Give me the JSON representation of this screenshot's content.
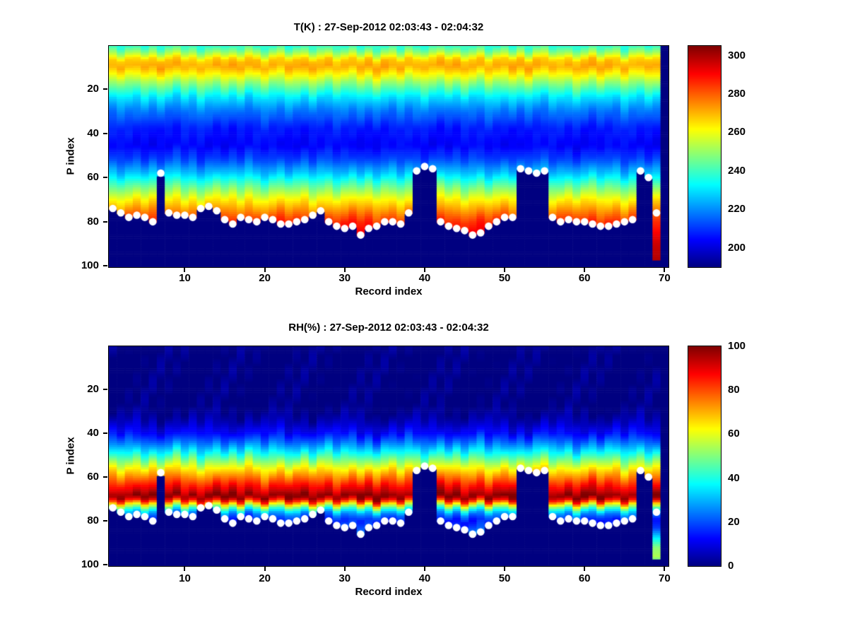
{
  "figure": {
    "background_color": "#ffffff",
    "text_color": "#000000"
  },
  "chart_data": [
    {
      "type": "heatmap",
      "title": "T(K) : 27-Sep-2012 02:03:43 - 02:04:32",
      "xlabel": "Record index",
      "ylabel": "P index",
      "records": 70,
      "p_levels": 100,
      "x_range": [
        1,
        70
      ],
      "y_range": [
        1,
        100
      ],
      "y_axis_direction": "reversed",
      "x_ticks": [
        10,
        20,
        30,
        40,
        50,
        60,
        70
      ],
      "y_ticks": [
        20,
        40,
        60,
        80,
        100
      ],
      "colormap": "jet",
      "grid": false,
      "colorbar": {
        "min": 190,
        "max": 305,
        "ticks": [
          200,
          220,
          240,
          260,
          280,
          300
        ],
        "position": "right"
      },
      "masked_color": "#00008f",
      "dot_color": "#ffffff",
      "texture_amplitude": 2.5,
      "profile_breakpoints": [
        [
          1,
          238
        ],
        [
          4,
          252
        ],
        [
          7,
          268
        ],
        [
          10,
          272
        ],
        [
          13,
          264
        ],
        [
          18,
          248
        ],
        [
          24,
          230
        ],
        [
          30,
          218
        ],
        [
          38,
          207
        ],
        [
          46,
          204
        ],
        [
          52,
          212
        ],
        [
          58,
          226
        ],
        [
          64,
          244
        ],
        [
          70,
          262
        ],
        [
          75,
          274
        ],
        [
          80,
          286
        ],
        [
          86,
          292
        ],
        [
          93,
          298
        ],
        [
          100,
          303
        ]
      ],
      "surface_index": [
        74,
        76,
        78,
        77,
        78,
        80,
        59,
        76,
        77,
        77,
        78,
        74,
        73,
        75,
        79,
        81,
        78,
        79,
        80,
        78,
        79,
        81,
        81,
        80,
        79,
        77,
        75,
        80,
        82,
        83,
        82,
        86,
        83,
        82,
        80,
        80,
        81,
        76,
        57,
        55,
        56,
        80,
        82,
        83,
        84,
        86,
        85,
        82,
        80,
        78,
        78,
        56,
        57,
        58,
        57,
        78,
        80,
        79,
        80,
        80,
        81,
        82,
        82,
        81,
        80,
        79,
        57,
        60,
        97,
        null
      ],
      "surface_dots": [
        74,
        76,
        78,
        77,
        78,
        80,
        58,
        76,
        77,
        77,
        78,
        74,
        73,
        75,
        79,
        81,
        78,
        79,
        80,
        78,
        79,
        81,
        81,
        80,
        79,
        77,
        75,
        80,
        82,
        83,
        82,
        86,
        83,
        82,
        80,
        80,
        81,
        76,
        57,
        55,
        56,
        80,
        82,
        83,
        84,
        86,
        85,
        82,
        80,
        78,
        78,
        56,
        57,
        58,
        57,
        78,
        80,
        79,
        80,
        80,
        81,
        82,
        82,
        81,
        80,
        79,
        57,
        60,
        76,
        null
      ],
      "column_shift": [
        0.3,
        -0.8,
        0.5,
        1.2,
        -0.4,
        0.9,
        -1.1,
        0.2,
        1.5,
        -0.6,
        0.8,
        -1.3,
        0.4,
        1.1,
        -0.2,
        0.7,
        -0.9,
        1.4,
        0.1,
        -1.0,
        0.6,
        1.3,
        -0.5,
        0.2,
        0.9,
        -1.2,
        0.3,
        1.0,
        -0.7,
        0.5,
        1.2,
        -0.3,
        0.8,
        -1.4,
        0.2,
        0.6,
        -0.9,
        1.1,
        0.4,
        -0.6,
        0.9,
        1.5,
        -0.2,
        0.7,
        -1.1,
        0.3,
        1.2,
        -0.8,
        0.5,
        1.0,
        -0.4,
        0.8,
        -1.2,
        0.6,
        1.3,
        -0.5,
        0.2,
        0.9,
        -1.0,
        0.4,
        1.1,
        -0.7,
        0.3,
        0.8,
        -1.3,
        0.6,
        1.4,
        -0.2,
        0.7,
        0.0
      ]
    },
    {
      "type": "heatmap",
      "title": "RH(%) : 27-Sep-2012 02:03:43 - 02:04:32",
      "xlabel": "Record index",
      "ylabel": "P index",
      "records": 70,
      "p_levels": 100,
      "x_range": [
        1,
        70
      ],
      "y_range": [
        1,
        100
      ],
      "y_axis_direction": "reversed",
      "x_ticks": [
        10,
        20,
        30,
        40,
        50,
        60,
        70
      ],
      "y_ticks": [
        20,
        40,
        60,
        80,
        100
      ],
      "colormap": "jet",
      "grid": false,
      "colorbar": {
        "min": 0,
        "max": 100,
        "ticks": [
          0,
          20,
          40,
          60,
          80,
          100
        ],
        "position": "right"
      },
      "masked_color": "#00008f",
      "dot_color": "#ffffff",
      "texture_amplitude": 4,
      "profile_breakpoints": [
        [
          1,
          0
        ],
        [
          28,
          0
        ],
        [
          34,
          4
        ],
        [
          40,
          12
        ],
        [
          44,
          22
        ],
        [
          48,
          34
        ],
        [
          52,
          48
        ],
        [
          56,
          62
        ],
        [
          60,
          74
        ],
        [
          64,
          86
        ],
        [
          67,
          94
        ],
        [
          69,
          100
        ],
        [
          71,
          86
        ],
        [
          73,
          60
        ],
        [
          75,
          40
        ],
        [
          77,
          26
        ],
        [
          80,
          15
        ],
        [
          84,
          20
        ],
        [
          88,
          34
        ],
        [
          93,
          52
        ],
        [
          97,
          58
        ],
        [
          100,
          45
        ]
      ],
      "surface_index": [
        74,
        76,
        78,
        77,
        78,
        80,
        59,
        76,
        77,
        77,
        78,
        74,
        73,
        75,
        79,
        81,
        78,
        79,
        80,
        78,
        79,
        81,
        81,
        80,
        79,
        77,
        75,
        80,
        82,
        83,
        82,
        86,
        83,
        82,
        80,
        80,
        81,
        76,
        57,
        55,
        56,
        80,
        82,
        83,
        84,
        86,
        85,
        82,
        80,
        78,
        78,
        56,
        57,
        58,
        57,
        78,
        80,
        79,
        80,
        80,
        81,
        82,
        82,
        81,
        80,
        79,
        57,
        60,
        97,
        null
      ],
      "surface_dots": [
        74,
        76,
        78,
        77,
        78,
        80,
        58,
        76,
        77,
        77,
        78,
        74,
        73,
        75,
        79,
        81,
        78,
        79,
        80,
        78,
        79,
        81,
        81,
        80,
        79,
        77,
        75,
        80,
        82,
        83,
        82,
        86,
        83,
        82,
        80,
        80,
        81,
        76,
        57,
        55,
        56,
        80,
        82,
        83,
        84,
        86,
        85,
        82,
        80,
        78,
        78,
        56,
        57,
        58,
        57,
        78,
        80,
        79,
        80,
        80,
        81,
        82,
        82,
        81,
        80,
        79,
        57,
        60,
        76,
        null
      ],
      "column_shift": [
        0.3,
        -0.8,
        0.5,
        1.2,
        -0.4,
        0.9,
        -1.1,
        0.2,
        1.5,
        -0.6,
        0.8,
        -1.3,
        0.4,
        1.1,
        -0.2,
        0.7,
        -0.9,
        1.4,
        0.1,
        -1.0,
        0.6,
        1.3,
        -0.5,
        0.2,
        0.9,
        -1.2,
        0.3,
        1.0,
        -0.7,
        0.5,
        1.2,
        -0.3,
        0.8,
        -1.4,
        0.2,
        0.6,
        -0.9,
        1.1,
        0.4,
        -0.6,
        0.9,
        1.5,
        -0.2,
        0.7,
        -1.1,
        0.3,
        1.2,
        -0.8,
        0.5,
        1.0,
        -0.4,
        0.8,
        -1.2,
        0.6,
        1.3,
        -0.5,
        0.2,
        0.9,
        -1.0,
        0.4,
        1.1,
        -0.7,
        0.3,
        0.8,
        -1.3,
        0.6,
        1.4,
        -0.2,
        0.7,
        0.0
      ]
    }
  ]
}
